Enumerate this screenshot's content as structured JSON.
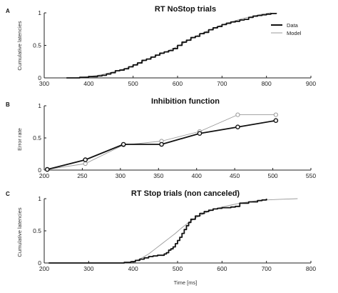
{
  "colors": {
    "data": "#111111",
    "model": "#999999",
    "axis": "#222222"
  },
  "chart_data": [
    {
      "panel": "A",
      "type": "line",
      "title": "RT NoStop trials",
      "xlabel": "",
      "ylabel": "Cumulative latencies",
      "xlim": [
        300,
        900
      ],
      "ylim": [
        0,
        1
      ],
      "xticks": [
        300,
        400,
        500,
        600,
        700,
        800,
        900
      ],
      "yticks": [
        0,
        0.5,
        1
      ],
      "legend": {
        "position": "top-right",
        "entries": [
          "Data",
          "Model"
        ]
      },
      "series": [
        {
          "name": "Data",
          "style": "step",
          "points": [
            [
              350,
              0
            ],
            [
              375,
              0
            ],
            [
              380,
              0.01
            ],
            [
              395,
              0.01
            ],
            [
              400,
              0.02
            ],
            [
              420,
              0.03
            ],
            [
              430,
              0.04
            ],
            [
              440,
              0.06
            ],
            [
              450,
              0.08
            ],
            [
              460,
              0.11
            ],
            [
              470,
              0.12
            ],
            [
              480,
              0.14
            ],
            [
              490,
              0.17
            ],
            [
              500,
              0.2
            ],
            [
              510,
              0.23
            ],
            [
              520,
              0.27
            ],
            [
              530,
              0.29
            ],
            [
              540,
              0.32
            ],
            [
              550,
              0.35
            ],
            [
              560,
              0.38
            ],
            [
              570,
              0.4
            ],
            [
              580,
              0.42
            ],
            [
              590,
              0.45
            ],
            [
              600,
              0.5
            ],
            [
              610,
              0.55
            ],
            [
              620,
              0.58
            ],
            [
              630,
              0.62
            ],
            [
              640,
              0.64
            ],
            [
              650,
              0.68
            ],
            [
              660,
              0.7
            ],
            [
              670,
              0.74
            ],
            [
              680,
              0.77
            ],
            [
              690,
              0.79
            ],
            [
              700,
              0.82
            ],
            [
              710,
              0.84
            ],
            [
              720,
              0.86
            ],
            [
              730,
              0.87
            ],
            [
              740,
              0.89
            ],
            [
              750,
              0.9
            ],
            [
              760,
              0.93
            ],
            [
              770,
              0.95
            ],
            [
              780,
              0.96
            ],
            [
              790,
              0.97
            ],
            [
              800,
              0.98
            ],
            [
              810,
              0.99
            ],
            [
              822,
              1
            ]
          ]
        },
        {
          "name": "Model",
          "style": "line",
          "points": [
            [
              370,
              0
            ],
            [
              400,
              0.02
            ],
            [
              430,
              0.05
            ],
            [
              460,
              0.1
            ],
            [
              490,
              0.16
            ],
            [
              510,
              0.22
            ],
            [
              530,
              0.28
            ],
            [
              550,
              0.33
            ],
            [
              570,
              0.39
            ],
            [
              590,
              0.45
            ],
            [
              610,
              0.52
            ],
            [
              630,
              0.6
            ],
            [
              650,
              0.67
            ],
            [
              670,
              0.73
            ],
            [
              690,
              0.79
            ],
            [
              710,
              0.84
            ],
            [
              730,
              0.88
            ],
            [
              750,
              0.92
            ],
            [
              770,
              0.95
            ],
            [
              790,
              0.98
            ],
            [
              810,
              1
            ]
          ]
        }
      ]
    },
    {
      "panel": "B",
      "type": "line",
      "title": "Inhibition function",
      "xlabel": "",
      "ylabel": "Error rate",
      "xlim": [
        200,
        550
      ],
      "ylim": [
        0,
        1
      ],
      "xticks": [
        200,
        250,
        300,
        350,
        400,
        450,
        500,
        550
      ],
      "yticks": [
        0,
        0.5,
        1
      ],
      "series": [
        {
          "name": "Data",
          "style": "line-marker",
          "points": [
            [
              204,
              0.01
            ],
            [
              254,
              0.16
            ],
            [
              304,
              0.4
            ],
            [
              354,
              0.4
            ],
            [
              404,
              0.57
            ],
            [
              454,
              0.67
            ],
            [
              504,
              0.77
            ]
          ]
        },
        {
          "name": "Model",
          "style": "line-marker",
          "points": [
            [
              204,
              0.01
            ],
            [
              254,
              0.1
            ],
            [
              304,
              0.39
            ],
            [
              354,
              0.45
            ],
            [
              404,
              0.6
            ],
            [
              454,
              0.86
            ],
            [
              504,
              0.86
            ]
          ]
        }
      ]
    },
    {
      "panel": "C",
      "type": "line",
      "title": "RT Stop trials (non canceled)",
      "xlabel": "Time [ms]",
      "ylabel": "Cumulative latencies",
      "xlim": [
        200,
        800
      ],
      "ylim": [
        0,
        1
      ],
      "xticks": [
        200,
        300,
        400,
        500,
        600,
        700,
        800
      ],
      "yticks": [
        0,
        0.5,
        1
      ],
      "series": [
        {
          "name": "Data",
          "style": "step",
          "points": [
            [
              210,
              0
            ],
            [
              380,
              0.01
            ],
            [
              395,
              0.02
            ],
            [
              405,
              0.04
            ],
            [
              415,
              0.06
            ],
            [
              425,
              0.08
            ],
            [
              435,
              0.1
            ],
            [
              445,
              0.11
            ],
            [
              455,
              0.12
            ],
            [
              465,
              0.12
            ],
            [
              470,
              0.14
            ],
            [
              475,
              0.16
            ],
            [
              480,
              0.2
            ],
            [
              485,
              0.22
            ],
            [
              490,
              0.25
            ],
            [
              495,
              0.3
            ],
            [
              500,
              0.35
            ],
            [
              505,
              0.4
            ],
            [
              510,
              0.46
            ],
            [
              515,
              0.52
            ],
            [
              520,
              0.58
            ],
            [
              525,
              0.63
            ],
            [
              530,
              0.68
            ],
            [
              540,
              0.73
            ],
            [
              550,
              0.77
            ],
            [
              560,
              0.8
            ],
            [
              570,
              0.82
            ],
            [
              580,
              0.84
            ],
            [
              590,
              0.85
            ],
            [
              600,
              0.86
            ],
            [
              620,
              0.87
            ],
            [
              630,
              0.88
            ],
            [
              640,
              0.93
            ],
            [
              660,
              0.95
            ],
            [
              680,
              0.97
            ],
            [
              690,
              0.98
            ],
            [
              700,
              1
            ]
          ]
        },
        {
          "name": "Model",
          "style": "line",
          "points": [
            [
              370,
              0
            ],
            [
              390,
              0.01
            ],
            [
              405,
              0.03
            ],
            [
              420,
              0.08
            ],
            [
              435,
              0.14
            ],
            [
              450,
              0.22
            ],
            [
              465,
              0.3
            ],
            [
              480,
              0.38
            ],
            [
              495,
              0.46
            ],
            [
              510,
              0.55
            ],
            [
              525,
              0.63
            ],
            [
              540,
              0.7
            ],
            [
              560,
              0.77
            ],
            [
              580,
              0.83
            ],
            [
              600,
              0.87
            ],
            [
              620,
              0.9
            ],
            [
              640,
              0.93
            ],
            [
              660,
              0.95
            ],
            [
              680,
              0.97
            ],
            [
              700,
              0.98
            ],
            [
              730,
              0.99
            ],
            [
              770,
              1
            ]
          ]
        }
      ]
    }
  ]
}
